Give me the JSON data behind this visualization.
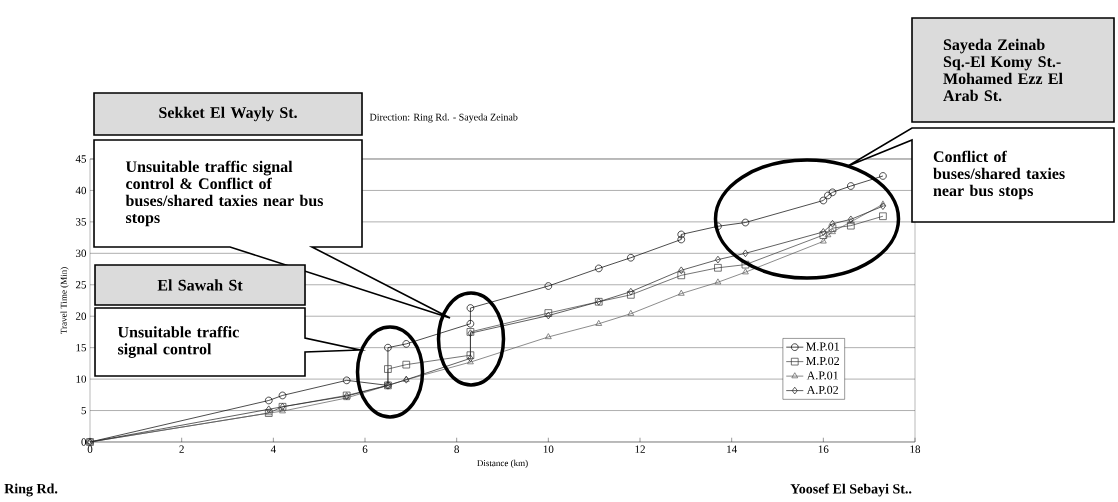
{
  "chart_data": {
    "type": "line",
    "title": "Direction: Ring Rd. - Sayeda Zeinab",
    "xlabel": "Distance (km)",
    "ylabel": "Travel Time (Min)",
    "xlim": [
      0,
      18
    ],
    "ylim": [
      0,
      45
    ],
    "xticks": [
      0,
      2,
      4,
      6,
      8,
      10,
      12,
      14,
      16,
      18
    ],
    "yticks": [
      0,
      5,
      10,
      15,
      20,
      25,
      30,
      35,
      40,
      45
    ],
    "grid": "y",
    "legend": "bottom right",
    "line_style": "solid",
    "series": [
      {
        "name": "M.P.01",
        "color": "#000000",
        "marker": "circle",
        "x": [
          0,
          3.9,
          4.2,
          5.6,
          6.5,
          6.5,
          6.9,
          8.3,
          8.3,
          10.0,
          11.1,
          11.8,
          12.9,
          12.9,
          13.7,
          14.3,
          16.0,
          16.1,
          16.2,
          16.6,
          17.3
        ],
        "values": [
          0,
          6.6,
          7.4,
          9.8,
          9.0,
          15.0,
          15.6,
          18.8,
          21.3,
          24.8,
          27.6,
          29.3,
          32.2,
          33.0,
          34.3,
          34.9,
          38.4,
          39.2,
          39.7,
          40.7,
          42.3
        ]
      },
      {
        "name": "M.P.02",
        "color": "#3a3a3a",
        "marker": "square",
        "x": [
          0,
          3.9,
          4.2,
          5.6,
          6.5,
          6.5,
          6.9,
          8.3,
          8.3,
          10.0,
          11.1,
          11.8,
          12.9,
          13.7,
          14.3,
          16.0,
          16.2,
          16.6,
          17.3
        ],
        "values": [
          0,
          4.6,
          5.6,
          7.4,
          9.0,
          11.6,
          12.3,
          13.8,
          17.5,
          20.5,
          22.3,
          23.4,
          26.5,
          27.7,
          28.2,
          32.9,
          34.0,
          34.4,
          35.9
        ]
      },
      {
        "name": "A.P.01",
        "color": "#5a5a5a",
        "marker": "triangle",
        "x": [
          0,
          3.9,
          4.2,
          5.6,
          6.5,
          6.9,
          8.3,
          10.0,
          11.1,
          11.8,
          12.9,
          13.7,
          14.3,
          16.0,
          16.1,
          16.2,
          16.6,
          17.3
        ],
        "values": [
          0,
          4.6,
          4.9,
          7.0,
          9.0,
          9.9,
          12.7,
          16.7,
          18.8,
          20.4,
          23.6,
          25.4,
          27.0,
          31.9,
          32.9,
          33.4,
          35.0,
          37.8
        ]
      },
      {
        "name": "A.P.02",
        "color": "#1c1c1c",
        "marker": "diamond",
        "x": [
          0,
          3.9,
          4.2,
          5.6,
          6.5,
          6.9,
          8.3,
          8.3,
          10.0,
          11.1,
          11.8,
          12.9,
          13.7,
          14.3,
          16.0,
          16.2,
          16.6,
          17.3
        ],
        "values": [
          0,
          5.2,
          5.6,
          7.3,
          9.0,
          9.9,
          13.3,
          17.3,
          20.1,
          22.3,
          23.9,
          27.3,
          29.0,
          30.0,
          33.4,
          34.7,
          35.4,
          37.5
        ]
      }
    ],
    "annotations": [
      "Sekket El Wayly St.",
      "Unsuitable traffic signal control & Conflict of buses/shared taxies near bus stops",
      "El Sawah St",
      "Unsuitable traffic signal control",
      "Sayeda Zeinab Sq.-El Komy St.-Mohamed Ezz El Arab St.",
      "Conflict of buses/shared taxies near bus stops",
      "Ring Rd.",
      "Yoosef El Sebayi St.."
    ]
  }
}
